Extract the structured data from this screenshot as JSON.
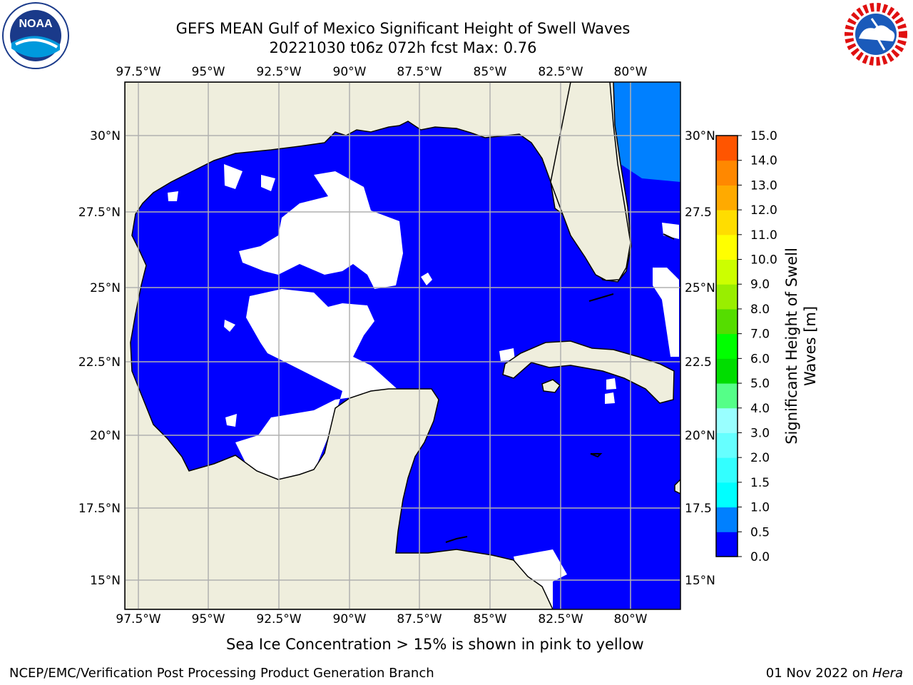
{
  "header": {
    "title_line1": "GEFS MEAN Gulf of Mexico Significant Height of Swell Waves",
    "title_line2": "20221030 t06z 072h fcst   Max: 0.76"
  },
  "logos": {
    "left_name": "NOAA",
    "left_ring_text": "NATIONAL OCEANIC AND ATMOSPHERIC ADMINISTRATION · U.S. DEPARTMENT OF COMMERCE",
    "right_ring_text": "NATIONAL WEATHER SERVICE"
  },
  "map": {
    "lon_labels": [
      "97.5°W",
      "95°W",
      "92.5°W",
      "90°W",
      "87.5°W",
      "85°W",
      "82.5°W",
      "80°W"
    ],
    "lat_labels_left": [
      "30°N",
      "27.5°N",
      "25°N",
      "22.5°N",
      "20°N",
      "17.5°N",
      "15°N"
    ],
    "lat_labels_right": [
      "30°N",
      "27.5",
      "25°N",
      "22.5",
      "20°N",
      "17.5",
      "15°N"
    ],
    "colors": {
      "land": "#efeedd",
      "swell_0_0p5": "#0000ff",
      "swell_0p5_1": "#0080ff",
      "grid": "#b0b0b0"
    }
  },
  "colorbar": {
    "tick_labels": [
      "15.0",
      "14.0",
      "13.0",
      "12.0",
      "11.0",
      "10.0",
      "9.0",
      "8.0",
      "7.0",
      "6.0",
      "5.0",
      "4.0",
      "3.0",
      "2.0",
      "1.5",
      "1.0",
      "0.5",
      "0.0"
    ],
    "title_line1": "Significant Height of Swell",
    "title_line2": "Waves [m]",
    "colors_bottom_to_top": [
      "#0000ff",
      "#0080ff",
      "#00ffff",
      "#33ffff",
      "#66ffff",
      "#99ffff",
      "#55ff88",
      "#00dd00",
      "#00ff00",
      "#55dd00",
      "#99ee00",
      "#ccff00",
      "#ffff00",
      "#ffdd00",
      "#ffaa00",
      "#ff8800",
      "#ff5500",
      "#ff0000"
    ]
  },
  "note": "Sea Ice Concentration > 15% is shown in pink to yellow",
  "footer": {
    "left": "NCEP/EMC/Verification Post Processing Product Generation Branch",
    "right_date": "01 Nov 2022 on ",
    "right_host": "Hera"
  }
}
